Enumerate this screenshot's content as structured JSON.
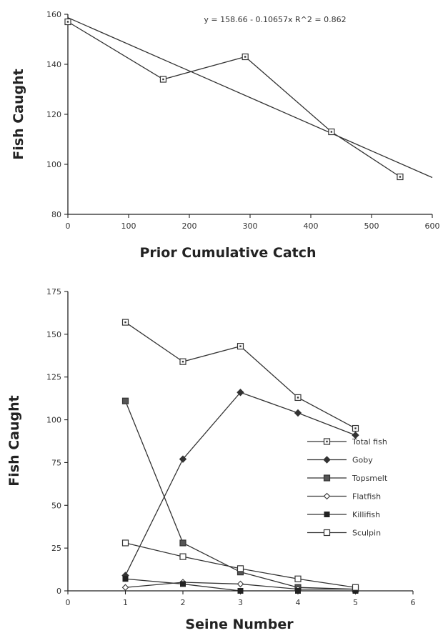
{
  "chart_data": [
    {
      "type": "line",
      "title": "",
      "xlabel": "Prior  Cumulative  Catch",
      "ylabel": "Fish  Caught",
      "xlim": [
        0,
        600
      ],
      "ylim": [
        80,
        160
      ],
      "xticks": [
        0,
        100,
        200,
        300,
        400,
        500,
        600
      ],
      "yticks": [
        80,
        100,
        120,
        140,
        160
      ],
      "annotation": "y = 158.66 - 0.10657x    R^2 = 0.862",
      "grid": false,
      "legend": "none",
      "series": [
        {
          "marker": "square-dot",
          "x": [
            0,
            157,
            292,
            434,
            547
          ],
          "y": [
            157,
            134,
            143,
            113,
            95
          ]
        }
      ],
      "fit": {
        "x": [
          0,
          600
        ],
        "y": [
          158.66,
          94.72
        ]
      }
    },
    {
      "type": "line",
      "title": "",
      "xlabel": "Seine  Number",
      "ylabel": "Fish  Caught",
      "xlim": [
        0,
        6
      ],
      "ylim": [
        0,
        175
      ],
      "xticks": [
        0,
        1,
        2,
        3,
        4,
        5,
        6
      ],
      "yticks": [
        0,
        25,
        50,
        75,
        100,
        125,
        150,
        175
      ],
      "grid": false,
      "legend": "right, inside plot",
      "x": [
        1,
        2,
        3,
        4,
        5
      ],
      "series": [
        {
          "name": "Total fish",
          "marker": "square-dot",
          "values": [
            157,
            134,
            143,
            113,
            95
          ]
        },
        {
          "name": "Goby",
          "marker": "diamond-filled",
          "values": [
            9,
            77,
            116,
            104,
            91
          ]
        },
        {
          "name": "Topsmelt",
          "marker": "square-filled",
          "values": [
            111,
            28,
            11,
            2,
            1
          ]
        },
        {
          "name": "Flatfish",
          "marker": "diamond-open",
          "values": [
            2,
            5,
            4,
            1,
            1
          ]
        },
        {
          "name": "Killifish",
          "marker": "square-solid",
          "values": [
            7,
            4,
            0,
            0,
            0
          ]
        },
        {
          "name": "Sculpin",
          "marker": "square-open",
          "values": [
            28,
            20,
            13,
            7,
            2
          ]
        }
      ]
    }
  ]
}
